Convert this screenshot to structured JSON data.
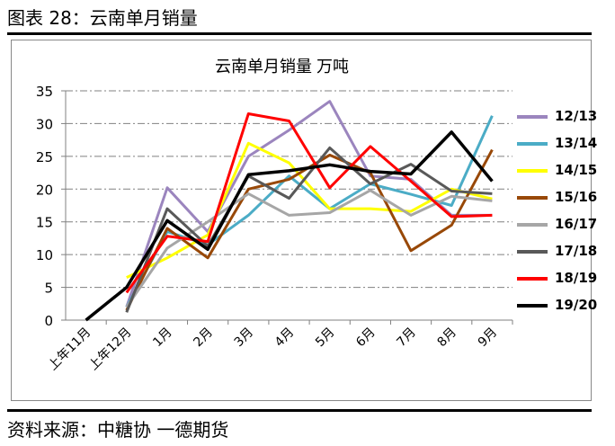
{
  "figure": {
    "title": "图表 28：云南单月销量",
    "source": "资料来源：中糖协 一德期货"
  },
  "chart_data": {
    "type": "line",
    "title": "云南单月销量",
    "unit": "万吨",
    "categories": [
      "上年11月",
      "上年12月",
      "1月",
      "2月",
      "3月",
      "4月",
      "5月",
      "6月",
      "7月",
      "8月",
      "9月"
    ],
    "ylim": [
      0,
      35
    ],
    "yticks": [
      0,
      5,
      10,
      15,
      20,
      25,
      30,
      35
    ],
    "grid": true,
    "legend_position": "right",
    "series": [
      {
        "name": "12/13",
        "color": "#9B85BE",
        "values": [
          null,
          2.0,
          20.2,
          13.5,
          25.0,
          29.0,
          33.4,
          22.0,
          21.5,
          16.0,
          16.0
        ]
      },
      {
        "name": "13/14",
        "color": "#4BACC6",
        "values": [
          null,
          2.0,
          13.5,
          11.5,
          16.0,
          22.0,
          17.0,
          20.8,
          19.2,
          17.5,
          31.2
        ]
      },
      {
        "name": "14/15",
        "color": "#FFFF00",
        "values": [
          null,
          6.5,
          9.5,
          13.0,
          27.0,
          24.0,
          17.0,
          17.0,
          16.6,
          20.0,
          18.5
        ]
      },
      {
        "name": "15/16",
        "color": "#984807",
        "values": [
          null,
          1.5,
          14.0,
          9.5,
          20.0,
          21.5,
          25.2,
          22.5,
          10.6,
          14.5,
          26.0
        ]
      },
      {
        "name": "16/17",
        "color": "#A6A6A6",
        "values": [
          null,
          2.0,
          11.0,
          15.0,
          19.3,
          16.0,
          16.4,
          19.8,
          16.0,
          18.9,
          18.2
        ]
      },
      {
        "name": "17/18",
        "color": "#595959",
        "values": [
          null,
          1.2,
          17.0,
          11.3,
          22.0,
          18.6,
          26.3,
          20.8,
          23.8,
          19.7,
          19.3
        ]
      },
      {
        "name": "18/19",
        "color": "#FF0000",
        "values": [
          null,
          4.2,
          12.8,
          12.0,
          31.5,
          30.4,
          20.2,
          26.5,
          21.2,
          15.8,
          16.0
        ]
      },
      {
        "name": "19/20",
        "color": "#000000",
        "values": [
          0.0,
          5.0,
          15.2,
          10.8,
          22.2,
          22.8,
          23.7,
          22.7,
          22.3,
          28.7,
          21.2
        ]
      }
    ]
  }
}
